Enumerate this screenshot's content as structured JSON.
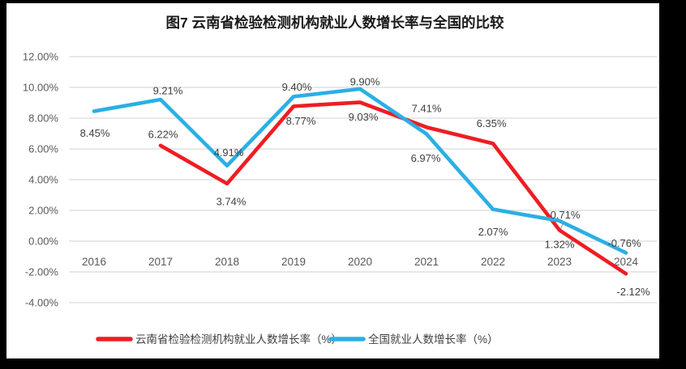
{
  "frame": {
    "background_color": "#000000",
    "chart_background_color": "#ffffff"
  },
  "chart_data": {
    "type": "line",
    "title": "图7  云南省检验检测机构就业人数增长率与全国的比较",
    "categories": [
      2016,
      2017,
      2018,
      2019,
      2020,
      2021,
      2022,
      2023,
      2024
    ],
    "series": [
      {
        "name": "云南省检验检测机构就业人数增长率（%）",
        "color": "#ee1d23",
        "values": [
          null,
          6.22,
          3.74,
          8.77,
          9.03,
          7.41,
          6.35,
          0.71,
          -2.12
        ],
        "labels": [
          null,
          "6.22%",
          "3.74%",
          "8.77%",
          "9.03%",
          "7.41%",
          "6.35%",
          "0.71%",
          "-2.12%"
        ]
      },
      {
        "name": "全国就业人数增长率（%）",
        "color": "#2bafe4",
        "values": [
          8.45,
          9.21,
          4.91,
          9.4,
          9.9,
          6.97,
          2.07,
          1.32,
          -0.76
        ],
        "labels": [
          "8.45%",
          "9.21%",
          "4.91%",
          "9.40%",
          "9.90%",
          "6.97%",
          "2.07%",
          "1.32%",
          "-0.76%"
        ]
      }
    ],
    "y_ticks": [
      {
        "value": 12,
        "label": "12.00%"
      },
      {
        "value": 10,
        "label": "10.00%"
      },
      {
        "value": 8,
        "label": "8.00%"
      },
      {
        "value": 6,
        "label": "6.00%"
      },
      {
        "value": 4,
        "label": "4.00%"
      },
      {
        "value": 2,
        "label": "2.00%"
      },
      {
        "value": 0,
        "label": "0.00%"
      },
      {
        "value": -2,
        "label": "-2.00%"
      },
      {
        "value": -4,
        "label": "-4.00%"
      }
    ],
    "ylim": [
      -4,
      12
    ],
    "grid": true,
    "gridline_color": "#d9d9d9",
    "tick_label_color": "#595959",
    "data_label_color": "#404040",
    "leader_line_color": "#a6a6a6",
    "legend_position": "bottom"
  }
}
